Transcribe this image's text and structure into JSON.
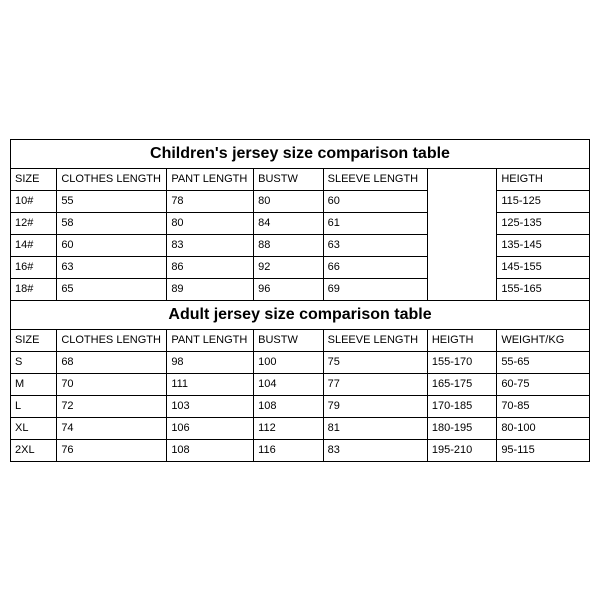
{
  "colors": {
    "border": "#000000",
    "bg": "#ffffff",
    "text": "#000000"
  },
  "col_widths_pct": [
    8,
    19,
    15,
    12,
    18,
    12,
    16
  ],
  "children": {
    "title": "Children's jersey size comparison table",
    "headers": [
      "SIZE",
      "CLOTHES LENGTH",
      "PANT LENGTH",
      "BUSTW",
      "SLEEVE LENGTH",
      "",
      "HEIGTH"
    ],
    "rows": [
      [
        "10#",
        "55",
        "78",
        "80",
        "60",
        "",
        "115-125"
      ],
      [
        "12#",
        "58",
        "80",
        "84",
        "61",
        "",
        "125-135"
      ],
      [
        "14#",
        "60",
        "83",
        "88",
        "63",
        "",
        "135-145"
      ],
      [
        "16#",
        "63",
        "86",
        "92",
        "66",
        "",
        "145-155"
      ],
      [
        "18#",
        "65",
        "89",
        "96",
        "69",
        "",
        "155-165"
      ]
    ]
  },
  "adult": {
    "title": "Adult jersey size comparison table",
    "headers": [
      "SIZE",
      "CLOTHES LENGTH",
      "PANT LENGTH",
      "BUSTW",
      "SLEEVE LENGTH",
      "HEIGTH",
      "WEIGHT/KG"
    ],
    "rows": [
      [
        "S",
        "68",
        "98",
        "100",
        "75",
        "155-170",
        "55-65"
      ],
      [
        "M",
        "70",
        "111",
        "104",
        "77",
        "165-175",
        "60-75"
      ],
      [
        "L",
        "72",
        "103",
        "108",
        "79",
        "170-185",
        "70-85"
      ],
      [
        "XL",
        "74",
        "106",
        "112",
        "81",
        "180-195",
        "80-100"
      ],
      [
        "2XL",
        "76",
        "108",
        "116",
        "83",
        "195-210",
        "95-115"
      ]
    ]
  }
}
